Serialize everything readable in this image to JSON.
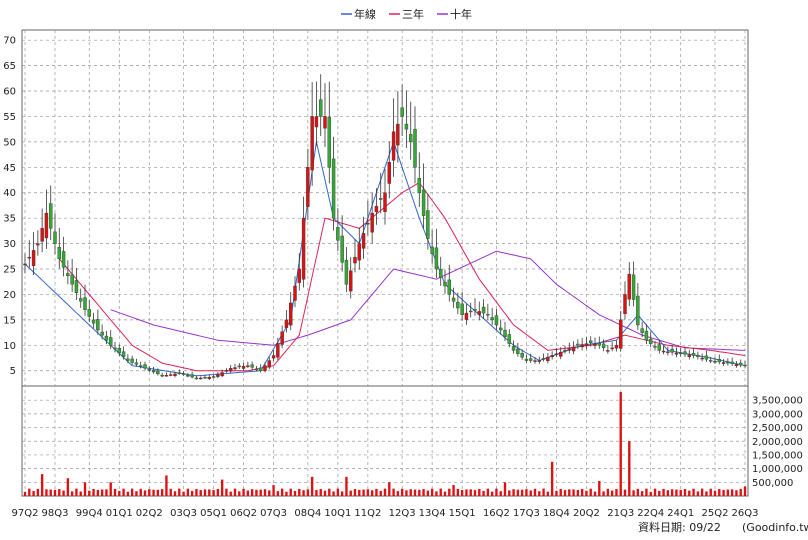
{
  "chart_data": {
    "type": "candlestick+bar",
    "legend": [
      {
        "label": "年線",
        "color": "#3366cc"
      },
      {
        "label": "三年",
        "color": "#dd2255"
      },
      {
        "label": "十年",
        "color": "#9933cc"
      }
    ],
    "price_axis": {
      "ticks": [
        5,
        10,
        15,
        20,
        25,
        30,
        35,
        40,
        45,
        50,
        55,
        60,
        65,
        70
      ],
      "ylim": [
        2,
        72
      ]
    },
    "volume_axis": {
      "ticks": [
        "500,000",
        "1,000,000",
        "1,500,000",
        "2,000,000",
        "2,500,000",
        "3,000,000",
        "3,500,000"
      ],
      "values": [
        500000,
        1000000,
        1500000,
        2000000,
        2500000,
        3000000,
        3500000
      ],
      "ylim": [
        0,
        3800000
      ]
    },
    "x_labels": [
      "97Q2",
      "98Q3",
      "99Q4",
      "01Q1",
      "02Q2",
      "03Q3",
      "05Q1",
      "06Q2",
      "07Q3",
      "08Q4",
      "10Q1",
      "11Q2",
      "12Q3",
      "13Q4",
      "15Q1",
      "16Q2",
      "17Q3",
      "18Q4",
      "20Q2",
      "21Q3",
      "22Q4",
      "24Q1",
      "25Q2",
      "26Q3"
    ],
    "price_keys": [
      [
        0,
        26
      ],
      [
        3,
        30
      ],
      [
        5,
        36
      ],
      [
        8,
        27
      ],
      [
        11,
        22
      ],
      [
        14,
        17
      ],
      [
        17,
        13
      ],
      [
        20,
        10
      ],
      [
        24,
        7
      ],
      [
        28,
        5.5
      ],
      [
        32,
        4
      ],
      [
        36,
        4.5
      ],
      [
        40,
        3.5
      ],
      [
        44,
        3.8
      ],
      [
        48,
        5.5
      ],
      [
        52,
        6
      ],
      [
        55,
        5
      ],
      [
        58,
        8
      ],
      [
        61,
        15
      ],
      [
        64,
        25
      ],
      [
        67,
        55
      ],
      [
        70,
        55
      ],
      [
        72,
        35
      ],
      [
        75,
        22
      ],
      [
        78,
        30
      ],
      [
        81,
        36
      ],
      [
        84,
        40
      ],
      [
        86,
        52
      ],
      [
        88,
        55
      ],
      [
        90,
        50
      ],
      [
        92,
        40
      ],
      [
        94,
        31
      ],
      [
        96,
        25
      ],
      [
        99,
        20
      ],
      [
        102,
        16
      ],
      [
        105,
        17
      ],
      [
        108,
        16
      ],
      [
        111,
        13
      ],
      [
        114,
        9
      ],
      [
        117,
        7
      ],
      [
        120,
        7
      ],
      [
        123,
        8
      ],
      [
        126,
        9
      ],
      [
        129,
        10
      ],
      [
        132,
        10.5
      ],
      [
        134,
        10
      ],
      [
        136,
        9
      ],
      [
        138,
        10
      ],
      [
        140,
        20
      ],
      [
        141,
        24
      ],
      [
        143,
        14
      ],
      [
        145,
        11
      ],
      [
        148,
        9
      ],
      [
        152,
        8.5
      ],
      [
        156,
        8
      ],
      [
        160,
        7
      ],
      [
        164,
        6.5
      ],
      [
        168,
        6
      ]
    ],
    "n_quarters": 169,
    "volume_peaks": [
      [
        4,
        800000
      ],
      [
        10,
        650000
      ],
      [
        14,
        500000
      ],
      [
        20,
        500000
      ],
      [
        33,
        750000
      ],
      [
        46,
        600000
      ],
      [
        58,
        400000
      ],
      [
        67,
        700000
      ],
      [
        75,
        700000
      ],
      [
        85,
        500000
      ],
      [
        100,
        400000
      ],
      [
        112,
        500000
      ],
      [
        123,
        1250000
      ],
      [
        134,
        550000
      ],
      [
        139,
        3800000
      ],
      [
        141,
        2000000
      ],
      [
        168,
        350000
      ]
    ],
    "year_line_keys": [
      [
        0,
        26
      ],
      [
        10,
        18
      ],
      [
        25,
        6
      ],
      [
        40,
        4
      ],
      [
        55,
        5
      ],
      [
        62,
        15
      ],
      [
        68,
        50
      ],
      [
        72,
        35
      ],
      [
        78,
        30
      ],
      [
        86,
        50
      ],
      [
        92,
        35
      ],
      [
        98,
        22
      ],
      [
        106,
        16
      ],
      [
        114,
        10
      ],
      [
        120,
        7
      ],
      [
        130,
        10
      ],
      [
        138,
        11
      ],
      [
        143,
        16
      ],
      [
        150,
        9
      ],
      [
        160,
        7.5
      ],
      [
        168,
        6
      ]
    ],
    "three_year_keys": [
      [
        8,
        27
      ],
      [
        18,
        17
      ],
      [
        25,
        10
      ],
      [
        32,
        6.5
      ],
      [
        40,
        5
      ],
      [
        52,
        5
      ],
      [
        58,
        6
      ],
      [
        64,
        12
      ],
      [
        70,
        35
      ],
      [
        78,
        33
      ],
      [
        88,
        40
      ],
      [
        92,
        42
      ],
      [
        98,
        35
      ],
      [
        106,
        23
      ],
      [
        114,
        14
      ],
      [
        122,
        9
      ],
      [
        132,
        10
      ],
      [
        140,
        12
      ],
      [
        150,
        10
      ],
      [
        160,
        9
      ],
      [
        168,
        8
      ]
    ],
    "ten_year_keys": [
      [
        20,
        17
      ],
      [
        30,
        14
      ],
      [
        45,
        11
      ],
      [
        58,
        10
      ],
      [
        66,
        12
      ],
      [
        76,
        15
      ],
      [
        86,
        25
      ],
      [
        96,
        23
      ],
      [
        110,
        28.5
      ],
      [
        118,
        27
      ],
      [
        124,
        22
      ],
      [
        134,
        16
      ],
      [
        144,
        12
      ],
      [
        154,
        9.5
      ],
      [
        168,
        9
      ]
    ],
    "y2": "資料日期: 09/22",
    "source": "(Goodinfo.tw)"
  },
  "colors": {
    "up": "#dd1111",
    "down": "#33aa33",
    "year": "#3366cc",
    "three": "#dd2255",
    "ten": "#9933cc",
    "grid": "#999999"
  }
}
